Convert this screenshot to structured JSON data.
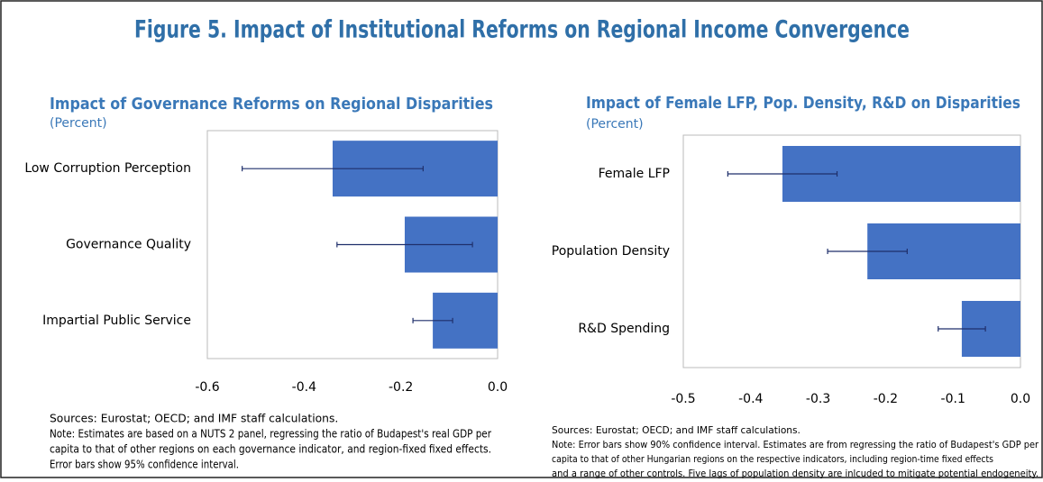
{
  "title": "Figure 5. Impact of Institutional Reforms on Regional Income Convergence",
  "chart_data": [
    {
      "type": "bar",
      "orientation": "horizontal",
      "title": "Impact of Governance Reforms on Regional Disparities",
      "subtitle": "(Percent)",
      "categories": [
        "Low Corruption Perception",
        "Governance Quality",
        "Impartial Public Service"
      ],
      "values": [
        -0.341,
        -0.192,
        -0.134
      ],
      "errors": [
        0.187,
        0.14,
        0.041
      ],
      "color": "#4472c4",
      "error_color": "#1f2f6b",
      "xlim": [
        -0.6,
        0
      ],
      "xticks": [
        -0.6,
        -0.4,
        -0.2,
        {
          "value": 0,
          "label": "0.0"
        }
      ],
      "sources": "Sources: Eurostat; OECD; and IMF staff calculations.",
      "note": [
        "Note: Estimates are based on a NUTS 2 panel, regressing the ratio of Budapest's real GDP per",
        "capita to that of other regions on each governance indicator, and region-fixed fixed effects.",
        "Error bars show 95% confidence interval."
      ]
    },
    {
      "type": "bar",
      "orientation": "horizontal",
      "title": "Impact of Female LFP, Pop. Density, R&D on Disparities",
      "subtitle": "(Percent)",
      "categories": [
        "Female LFP",
        "Population Density",
        "R&D Spending"
      ],
      "values": [
        -0.353,
        -0.227,
        -0.087
      ],
      "errors": [
        0.081,
        0.059,
        0.035
      ],
      "color": "#4472c4",
      "error_color": "#1f2f6b",
      "xlim": [
        -0.5,
        0
      ],
      "xticks": [
        -0.5,
        -0.4,
        -0.3,
        -0.2,
        -0.1,
        {
          "value": 0,
          "label": "0.0"
        }
      ],
      "sources": "Sources: Eurostat; OECD; and IMF staff calculations.",
      "note": [
        "Note: Error bars show 90% confidence interval. Estimates are from regressing the ratio of Budapest's GDP per",
        "capita to that of other Hungarian regions on the respective indicators, including region-time fixed effects",
        "and a range of other controls. Five lags of population density are inlcuded to mitigate potential endogeneity."
      ]
    }
  ]
}
